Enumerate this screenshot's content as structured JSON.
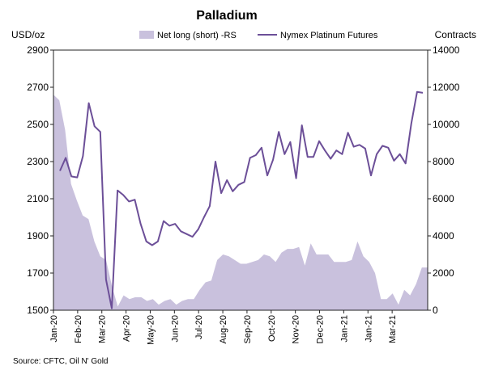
{
  "chart_data": {
    "type": "line",
    "title": "Palladium",
    "y_left_unit": "USD/oz",
    "y_right_unit": "Contracts",
    "y_left_range": [
      1500,
      2900
    ],
    "y_left_ticks": [
      "1500",
      "1700",
      "1900",
      "2100",
      "2300",
      "2500",
      "2700",
      "2900"
    ],
    "y_right_range": [
      0,
      14000
    ],
    "y_right_ticks": [
      "0",
      "2000",
      "4000",
      "6000",
      "8000",
      "10000",
      "12000",
      "14000"
    ],
    "x_tick_labels": [
      "Jan-20",
      "Feb-20",
      "Mar-20",
      "Apr-20",
      "May-20",
      "Jun-20",
      "Jul-20",
      "Aug-20",
      "Sep-20",
      "Oct-20",
      "Nov-20",
      "Dec-20",
      "Jan-21",
      "Jan-21",
      "Mar-21"
    ],
    "legend": [
      "Net long (short) -RS",
      "Nymex Platinum Futures"
    ],
    "source": "Source: CFTC, Oil N' Gold",
    "series": [
      {
        "name": "Net long (short) -RS",
        "axis": "right",
        "kind": "area",
        "color": "#c9c1dd",
        "values": [
          11600,
          11300,
          9700,
          6800,
          5900,
          5100,
          4900,
          3700,
          2900,
          2700,
          1300,
          200,
          800,
          600,
          700,
          700,
          500,
          600,
          300,
          500,
          600,
          300,
          500,
          600,
          600,
          1100,
          1500,
          1600,
          2700,
          3000,
          2900,
          2700,
          2500,
          2500,
          2600,
          2700,
          3000,
          2900,
          2600,
          3100,
          3300,
          3300,
          3400,
          2400,
          3600,
          3000,
          3000,
          3000,
          2600,
          2600,
          2600,
          2700,
          3700,
          2900,
          2600,
          2000,
          600,
          600,
          900,
          300,
          1100,
          800,
          1400,
          2300,
          2300
        ]
      },
      {
        "name": "Nymex Platinum Futures",
        "axis": "left",
        "kind": "line",
        "color": "#6c4f98",
        "values": [
          2250,
          2320,
          2220,
          2215,
          2330,
          2615,
          2490,
          2460,
          1665,
          1510,
          2145,
          2120,
          2085,
          2095,
          1965,
          1870,
          1850,
          1870,
          1980,
          1955,
          1965,
          1925,
          1910,
          1895,
          1935,
          2000,
          2060,
          2300,
          2130,
          2200,
          2140,
          2175,
          2190,
          2320,
          2335,
          2375,
          2225,
          2310,
          2460,
          2340,
          2405,
          2210,
          2495,
          2325,
          2325,
          2410,
          2360,
          2315,
          2360,
          2340,
          2455,
          2380,
          2390,
          2370,
          2225,
          2340,
          2385,
          2375,
          2305,
          2340,
          2290,
          2505,
          2675,
          2670
        ]
      }
    ]
  }
}
